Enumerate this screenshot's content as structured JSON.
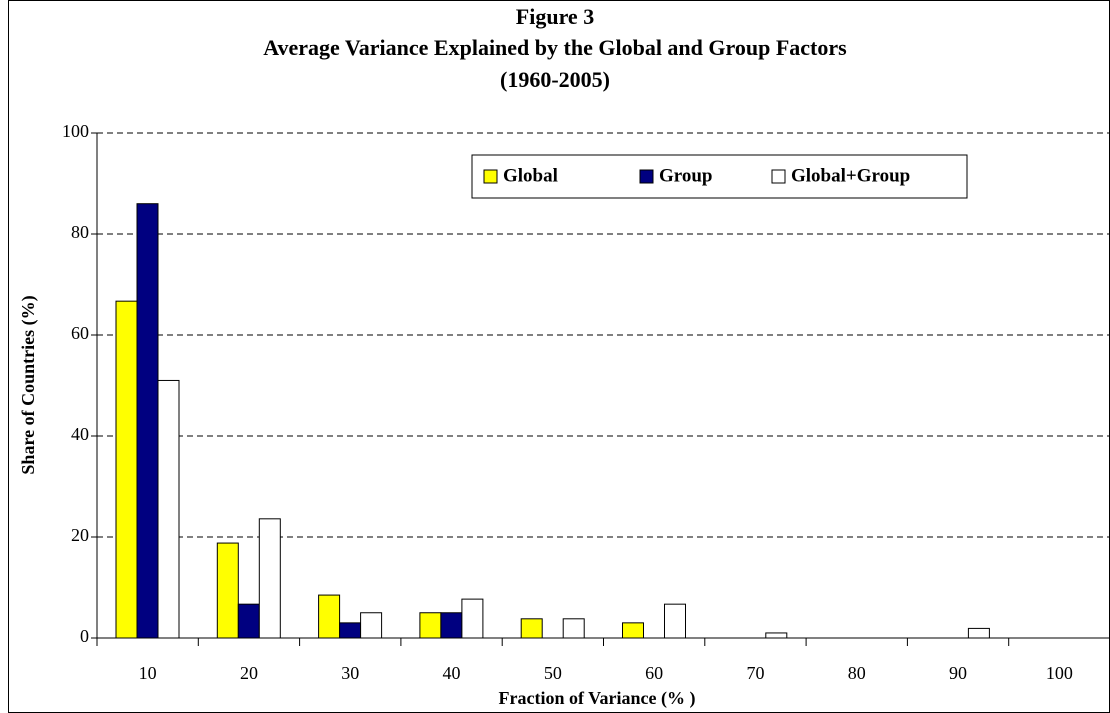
{
  "chart_data": {
    "type": "bar",
    "title": "Figure 3",
    "subtitle": "Average Variance Explained by the Global and Group Factors",
    "subtitle2": "(1960-2005)",
    "xlabel": "Fraction of Variance (% )",
    "ylabel": "Share of Countries (%)",
    "categories": [
      "10",
      "20",
      "30",
      "40",
      "50",
      "60",
      "70",
      "80",
      "90",
      "100"
    ],
    "series": [
      {
        "name": "Global",
        "color": "#ffff00",
        "values": [
          66.7,
          18.8,
          8.5,
          5,
          3.8,
          3,
          0,
          0,
          0,
          0
        ]
      },
      {
        "name": "Group",
        "color": "#000080",
        "values": [
          86,
          6.7,
          3,
          5,
          0,
          0,
          0,
          0,
          0,
          0
        ]
      },
      {
        "name": "Global+Group",
        "color": "#ffffff",
        "values": [
          51,
          23.6,
          5,
          7.7,
          3.8,
          6.7,
          1,
          0,
          1.9,
          0
        ]
      }
    ],
    "ylim": [
      0,
      100
    ],
    "yticks": [
      0,
      20,
      40,
      60,
      80,
      100
    ],
    "grid": true
  }
}
